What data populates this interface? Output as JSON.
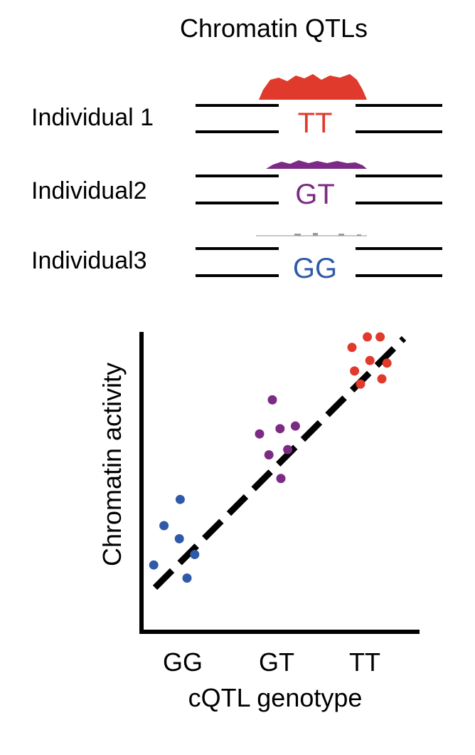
{
  "title": "Chromatin  QTLs",
  "tracks": [
    {
      "label": "Individual 1",
      "genotype": "TT",
      "color": "#e03a2c",
      "signal": "high"
    },
    {
      "label": "Individual2",
      "genotype": "GT",
      "color": "#7b2a85",
      "signal": "medium"
    },
    {
      "label": "Individual3",
      "genotype": "GG",
      "color": "#2f5aa8",
      "signal": "low"
    }
  ],
  "chart_data": {
    "type": "scatter",
    "xlabel": "cQTL genotype",
    "ylabel": "Chromatin activity",
    "categories": [
      "GG",
      "GT",
      "TT"
    ],
    "trend_line": "dashed, increasing",
    "series": [
      {
        "category": "GG",
        "color": "#2f5aa8",
        "points": [
          [
            -0.34,
            0.1
          ],
          [
            -0.04,
            0.2
          ],
          [
            -0.03,
            0.35
          ],
          [
            0.05,
            0.05
          ],
          [
            0.14,
            0.14
          ],
          [
            -0.22,
            0.25
          ]
        ]
      },
      {
        "category": "GT",
        "color": "#7b2a85",
        "points": [
          [
            -0.2,
            0.6
          ],
          [
            -0.05,
            0.73
          ],
          [
            0.04,
            0.62
          ],
          [
            0.13,
            0.54
          ],
          [
            0.22,
            0.63
          ],
          [
            -0.09,
            0.52
          ],
          [
            0.05,
            0.43
          ]
        ]
      },
      {
        "category": "TT",
        "color": "#e03a2c",
        "points": [
          [
            -0.15,
            0.93
          ],
          [
            0.03,
            0.97
          ],
          [
            0.18,
            0.97
          ],
          [
            0.06,
            0.88
          ],
          [
            -0.12,
            0.84
          ],
          [
            0.26,
            0.87
          ],
          [
            0.2,
            0.81
          ],
          [
            -0.05,
            0.79
          ]
        ]
      }
    ]
  }
}
